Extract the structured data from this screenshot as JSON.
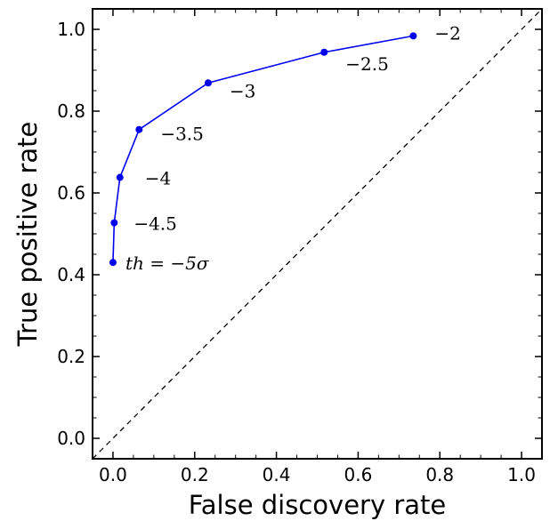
{
  "chart_data": {
    "type": "line",
    "xlabel": "False discovery rate",
    "ylabel": "True positive rate",
    "xlim": [
      -0.05,
      1.05
    ],
    "ylim": [
      -0.05,
      1.05
    ],
    "xticks": [
      "0.0",
      "0.2",
      "0.4",
      "0.6",
      "0.8",
      "1.0"
    ],
    "yticks": [
      "0.0",
      "0.2",
      "0.4",
      "0.6",
      "0.8",
      "1.0"
    ],
    "grid": false,
    "color": "#0000ee",
    "series": [
      {
        "x": [
          0.0,
          0.003,
          0.017,
          0.064,
          0.233,
          0.517,
          0.735
        ],
        "y": [
          0.43,
          0.527,
          0.638,
          0.755,
          0.869,
          0.944,
          0.984
        ],
        "labels": [
          "th = −5σ",
          "−4.5",
          "−4",
          "−3.5",
          "−3",
          "−2.5",
          "−2"
        ]
      }
    ],
    "reference_line": {
      "x": [
        -0.05,
        1.05
      ],
      "y": [
        -0.05,
        1.05
      ],
      "style": "dashed"
    }
  }
}
